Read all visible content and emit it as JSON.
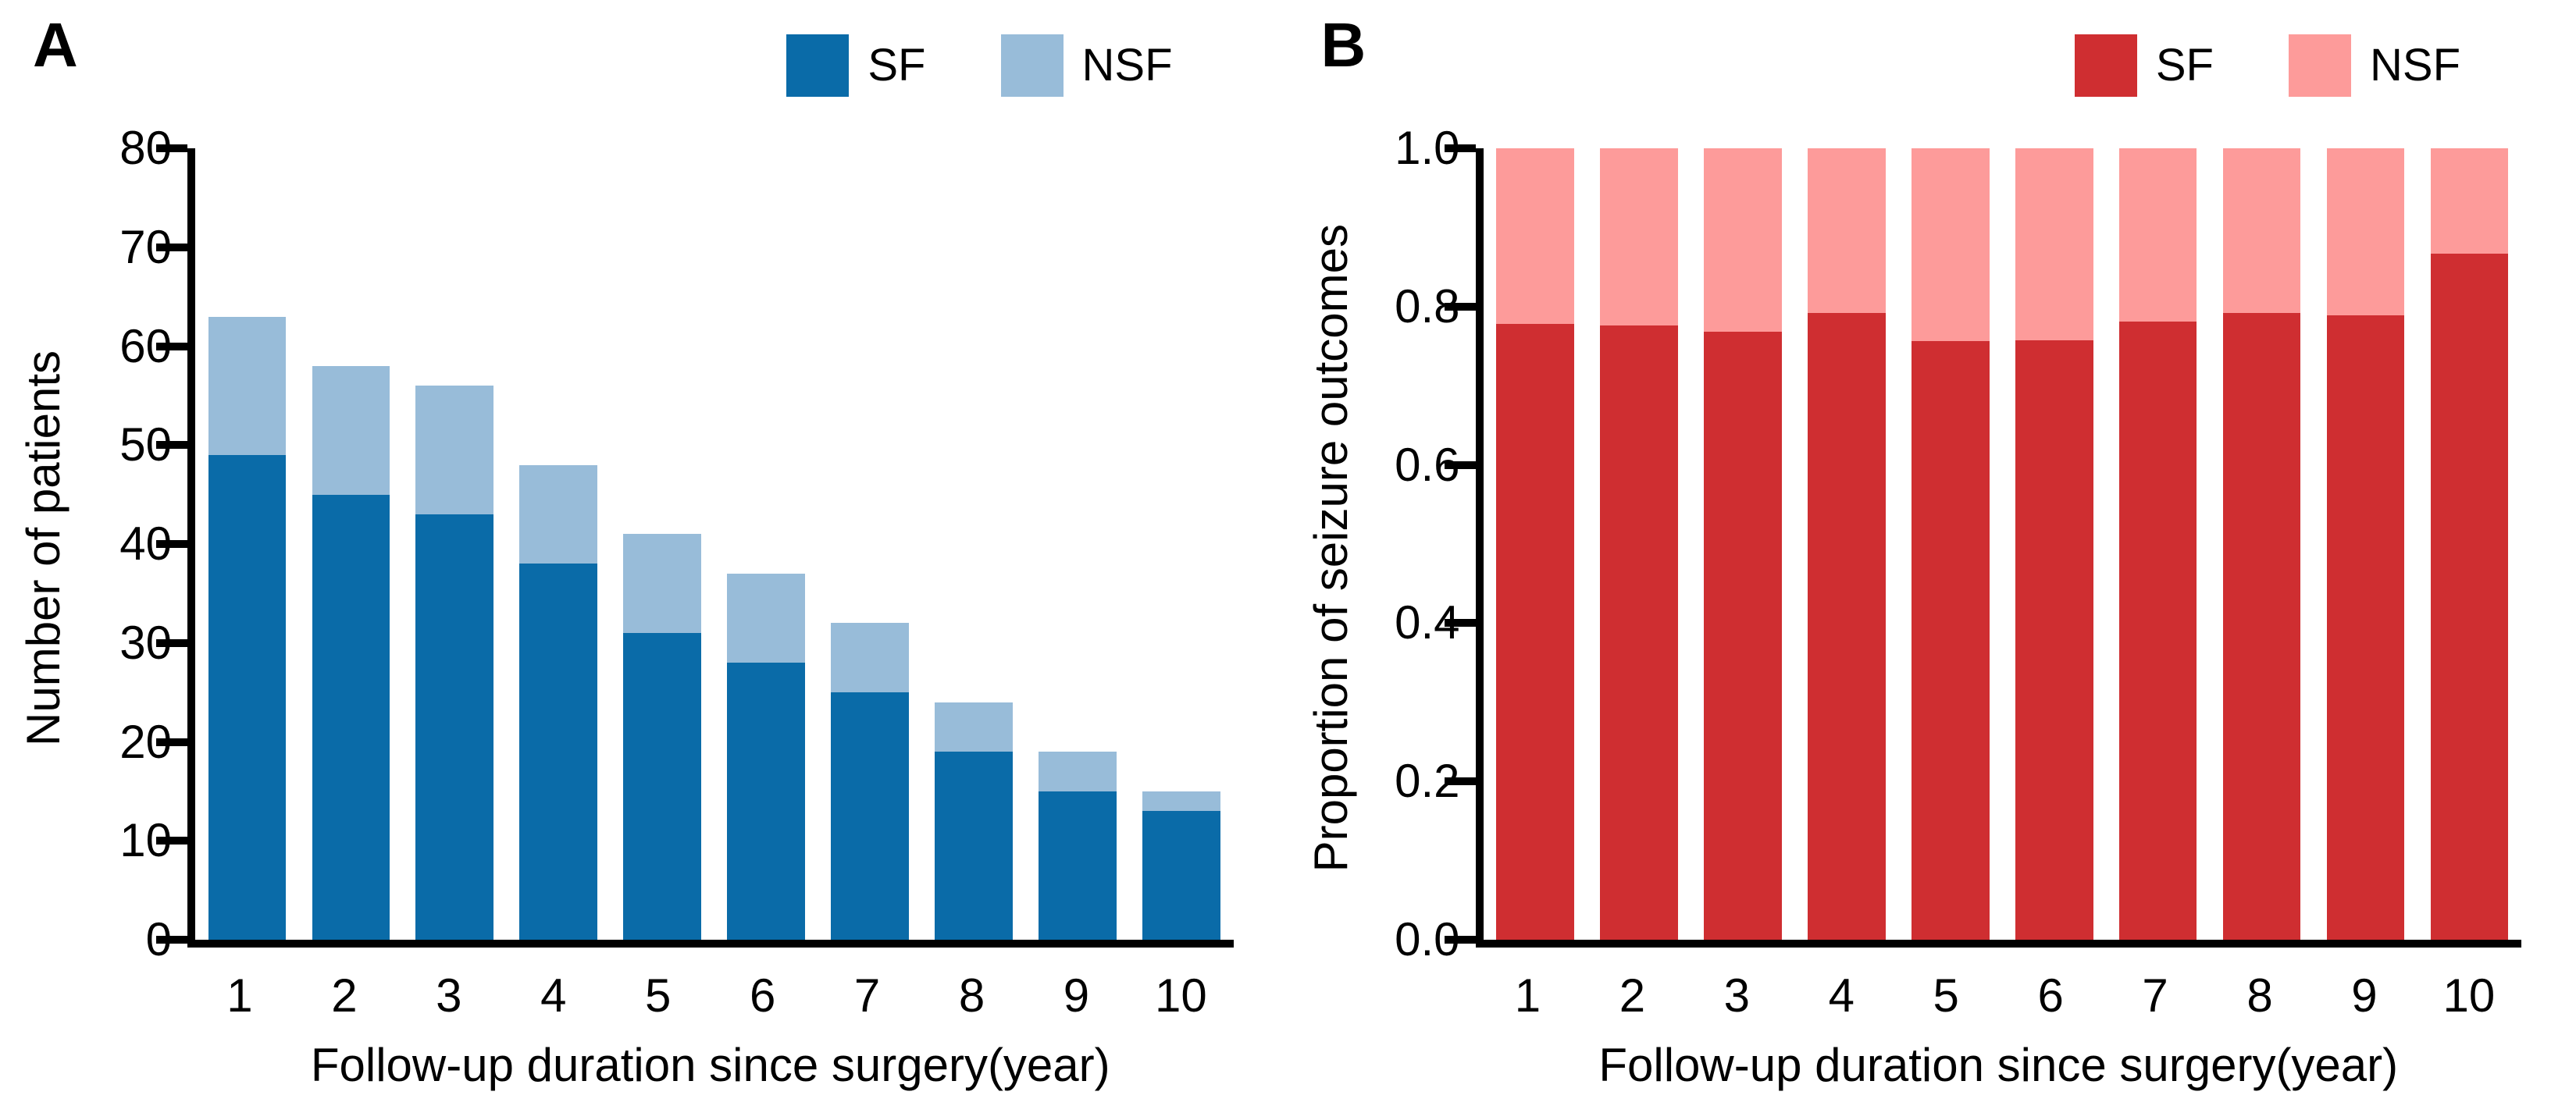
{
  "figure": {
    "panels": [
      {
        "letter": "A"
      },
      {
        "letter": "B"
      }
    ]
  },
  "chart_data": [
    {
      "panel": "A",
      "type": "bar",
      "stacked": true,
      "title": "",
      "categories": [
        "1",
        "2",
        "3",
        "4",
        "5",
        "6",
        "7",
        "8",
        "9",
        "10"
      ],
      "series": [
        {
          "name": "SF",
          "color": "#0a6ba8",
          "values": [
            49,
            45,
            43,
            38,
            31,
            28,
            25,
            19,
            15,
            13
          ]
        },
        {
          "name": "NSF",
          "color": "#98bcd9",
          "values": [
            14,
            13,
            13,
            10,
            10,
            9,
            7,
            5,
            4,
            2
          ]
        }
      ],
      "totals": [
        63,
        58,
        56,
        48,
        41,
        37,
        32,
        24,
        19,
        15
      ],
      "xlabel": "Follow-up duration since surgery(year)",
      "ylabel": "Number of patients",
      "ylim": [
        0,
        80
      ],
      "yticks": [
        0,
        10,
        20,
        30,
        40,
        50,
        60,
        70,
        80
      ],
      "ytick_labels": [
        "0",
        "10",
        "20",
        "30",
        "40",
        "50",
        "60",
        "70",
        "80"
      ],
      "grid": false,
      "legend_position": "top-right"
    },
    {
      "panel": "B",
      "type": "bar",
      "stacked": true,
      "normalized": true,
      "title": "",
      "categories": [
        "1",
        "2",
        "3",
        "4",
        "5",
        "6",
        "7",
        "8",
        "9",
        "10"
      ],
      "series": [
        {
          "name": "SF",
          "color": "#cf2e31",
          "values": [
            0.778,
            0.776,
            0.768,
            0.792,
            0.756,
            0.757,
            0.781,
            0.792,
            0.789,
            0.867
          ]
        },
        {
          "name": "NSF",
          "color": "#fd9b9a",
          "values": [
            0.222,
            0.224,
            0.232,
            0.208,
            0.244,
            0.243,
            0.219,
            0.208,
            0.211,
            0.133
          ]
        }
      ],
      "xlabel": "Follow-up duration since surgery(year)",
      "ylabel": "Proportion of seizure outcomes",
      "ylim": [
        0,
        1
      ],
      "yticks": [
        0.0,
        0.2,
        0.4,
        0.6,
        0.8,
        1.0
      ],
      "ytick_labels": [
        "0.0",
        "0.2",
        "0.4",
        "0.6",
        "0.8",
        "1.0"
      ],
      "grid": false,
      "legend_position": "top-right"
    }
  ]
}
